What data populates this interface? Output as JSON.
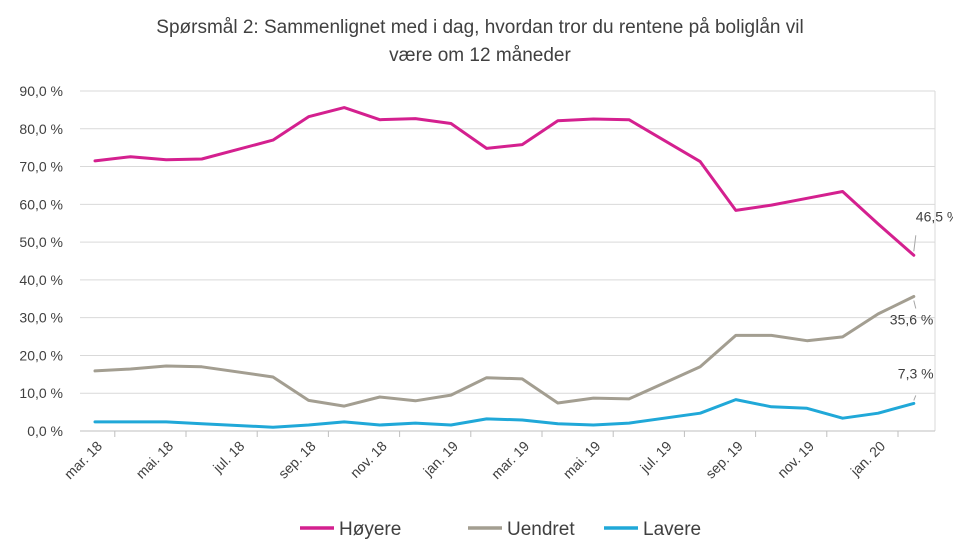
{
  "chart_data": {
    "type": "line",
    "title_line1": "Spørsmål 2: Sammenlignet  med i dag, hvordan tror du rentene på boliglån vil",
    "title_line2": "være om 12 måneder",
    "y_ticks": [
      "0,0 %",
      "10,0 %",
      "20,0 %",
      "30,0 %",
      "40,0 %",
      "50,0 %",
      "60,0 %",
      "70,0 %",
      "80,0 %",
      "90,0 %"
    ],
    "ylim": [
      0,
      90
    ],
    "x_tick_labels": [
      "mar. 18",
      "mai. 18",
      "jul. 18",
      "sep. 18",
      "nov. 18",
      "jan. 19",
      "mar. 19",
      "mai. 19",
      "jul. 19",
      "sep. 19",
      "nov. 19",
      "jan. 20"
    ],
    "x_months": [
      "mar. 18",
      "apr. 18",
      "mai. 18",
      "jun. 18",
      "jul. 18",
      "aug. 18",
      "sep. 18",
      "okt. 18",
      "nov. 18",
      "des. 18",
      "jan. 19",
      "feb. 19",
      "mar. 19",
      "apr. 19",
      "mai. 19",
      "jun. 19",
      "jul. 19",
      "aug. 19",
      "sep. 19",
      "okt. 19",
      "nov. 19",
      "des. 19",
      "jan. 20",
      "feb. 20"
    ],
    "grid": true,
    "legend_position": "bottom",
    "series": [
      {
        "name": "Høyere",
        "color": "#d4208f",
        "points": [
          [
            0,
            71.5
          ],
          [
            1,
            72.6
          ],
          [
            2,
            71.8
          ],
          [
            3,
            72.0
          ],
          [
            5,
            77.0
          ],
          [
            6,
            83.2
          ],
          [
            7,
            85.6
          ],
          [
            8,
            82.4
          ],
          [
            9,
            82.7
          ],
          [
            10,
            81.4
          ],
          [
            11,
            74.8
          ],
          [
            12,
            75.8
          ],
          [
            13,
            82.1
          ],
          [
            14,
            82.6
          ],
          [
            15,
            82.4
          ],
          [
            17,
            71.3
          ],
          [
            18,
            58.4
          ],
          [
            19,
            59.8
          ],
          [
            20,
            61.6
          ],
          [
            21,
            63.4
          ],
          [
            22,
            54.8
          ],
          [
            23,
            46.5
          ]
        ],
        "end_label": "46,5 %"
      },
      {
        "name": "Uendret",
        "color": "#a39e91",
        "points": [
          [
            0,
            15.9
          ],
          [
            1,
            16.4
          ],
          [
            2,
            17.2
          ],
          [
            3,
            17.0
          ],
          [
            5,
            14.3
          ],
          [
            6,
            8.1
          ],
          [
            7,
            6.6
          ],
          [
            8,
            9.0
          ],
          [
            9,
            8.0
          ],
          [
            10,
            9.5
          ],
          [
            11,
            14.1
          ],
          [
            12,
            13.8
          ],
          [
            13,
            7.4
          ],
          [
            14,
            8.7
          ],
          [
            15,
            8.5
          ],
          [
            17,
            17.0
          ],
          [
            18,
            25.3
          ],
          [
            19,
            25.3
          ],
          [
            20,
            23.9
          ],
          [
            21,
            24.9
          ],
          [
            22,
            31.0
          ],
          [
            23,
            35.6
          ]
        ],
        "end_label": "35,6 %"
      },
      {
        "name": "Lavere",
        "color": "#20a8d8",
        "points": [
          [
            0,
            2.4
          ],
          [
            1,
            2.4
          ],
          [
            2,
            2.4
          ],
          [
            3,
            1.9
          ],
          [
            5,
            1.0
          ],
          [
            6,
            1.6
          ],
          [
            7,
            2.4
          ],
          [
            8,
            1.6
          ],
          [
            9,
            2.1
          ],
          [
            10,
            1.6
          ],
          [
            11,
            3.2
          ],
          [
            12,
            2.9
          ],
          [
            13,
            1.9
          ],
          [
            14,
            1.6
          ],
          [
            15,
            2.1
          ],
          [
            17,
            4.7
          ],
          [
            18,
            8.3
          ],
          [
            19,
            6.4
          ],
          [
            20,
            6.0
          ],
          [
            21,
            3.4
          ],
          [
            22,
            4.7
          ],
          [
            23,
            7.3
          ]
        ],
        "end_label": "7,3 %"
      }
    ]
  }
}
